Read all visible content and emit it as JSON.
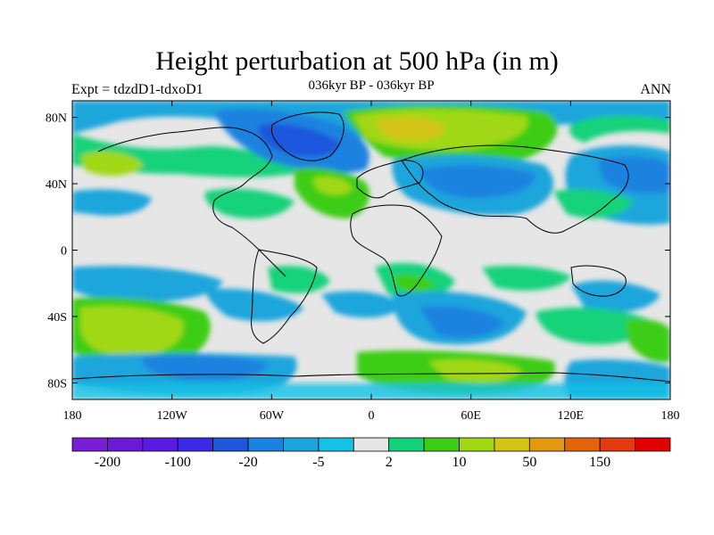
{
  "plot": {
    "title": "Height perturbation at 500 hPa (in m)",
    "left_string": "Expt = tdzdD1-tdxoD1",
    "center_string": "036kyr BP - 036kyr BP",
    "right_string": "ANN"
  },
  "map": {
    "projection": "cylindrical equidistant",
    "lon_range": [
      -180,
      180
    ],
    "lat_range": [
      -90,
      90
    ],
    "x_ticks": [
      {
        "value": -180,
        "label": "180"
      },
      {
        "value": -120,
        "label": "120W"
      },
      {
        "value": -60,
        "label": "60W"
      },
      {
        "value": 0,
        "label": "0"
      },
      {
        "value": 60,
        "label": "60E"
      },
      {
        "value": 120,
        "label": "120E"
      },
      {
        "value": 180,
        "label": "180"
      }
    ],
    "y_ticks": [
      {
        "value": 80,
        "label": "80N"
      },
      {
        "value": 40,
        "label": "40N"
      },
      {
        "value": 0,
        "label": "0"
      },
      {
        "value": -40,
        "label": "40S"
      },
      {
        "value": -80,
        "label": "80S"
      }
    ],
    "field_background_color": "#e6e6e6",
    "coastline_color": "#000000"
  },
  "colorbar": {
    "colors": [
      "#7a1ed6",
      "#6a1ad6",
      "#5a1ae0",
      "#3a2ae6",
      "#1e56dc",
      "#1a82e0",
      "#1aa6dc",
      "#14c2e6",
      "#e6e6e6",
      "#14d27a",
      "#3ccd14",
      "#a0d814",
      "#d2c414",
      "#e49a10",
      "#e4640c",
      "#e43a10",
      "#e00000"
    ],
    "levels": [
      "-200",
      "-100",
      "-20",
      "-5",
      "2",
      "10",
      "50",
      "150"
    ],
    "label_positions": [
      1,
      3,
      5,
      7,
      9,
      11,
      13,
      15
    ]
  },
  "chart_data": {
    "type": "heatmap",
    "title": "Height perturbation at 500 hPa (in m)",
    "subtitle": "036kyr BP - 036kyr BP",
    "xlim": [
      -180,
      180
    ],
    "ylim": [
      -90,
      90
    ],
    "contour_levels": [
      -200,
      -150,
      -100,
      -50,
      -20,
      -10,
      -5,
      -2,
      2,
      5,
      10,
      20,
      50,
      100,
      150,
      200
    ],
    "features": [
      {
        "lon": -60,
        "lat": 70,
        "value": -30
      },
      {
        "lon": 20,
        "lat": 72,
        "value": 25
      },
      {
        "lon": 60,
        "lat": 40,
        "value": -15
      },
      {
        "lon": -150,
        "lat": 50,
        "value": 12
      },
      {
        "lon": -150,
        "lat": -45,
        "value": 20
      },
      {
        "lon": 80,
        "lat": -50,
        "value": -15
      },
      {
        "lon": 170,
        "lat": -55,
        "value": 15
      },
      {
        "lon": 150,
        "lat": 50,
        "value": -12
      }
    ]
  }
}
